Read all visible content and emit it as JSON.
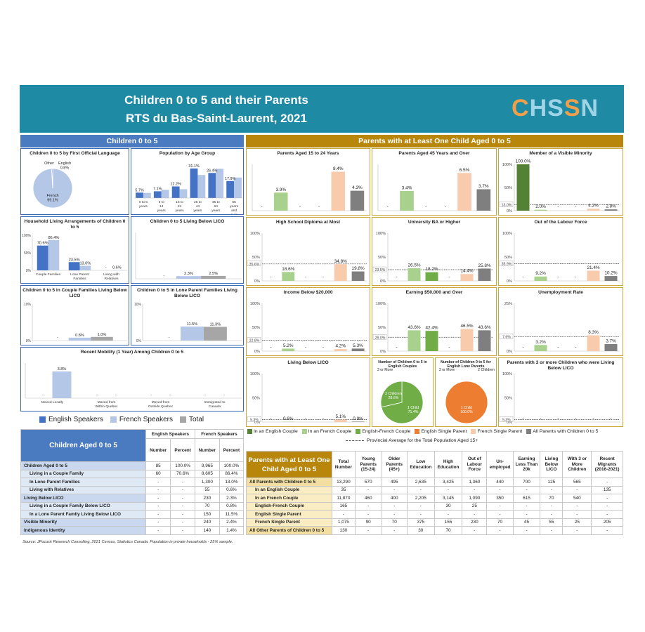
{
  "header": {
    "title": "Children 0 to 5 and their Parents",
    "subtitle": "RTS du Bas-Saint-Laurent, 2021",
    "logo": "CHSSN"
  },
  "colors": {
    "eng": "#4472c4",
    "fr": "#b4c7e7",
    "tot": "#a6a6a6",
    "header_teal": "#1f8aa4",
    "blue_head": "#4a7bc1",
    "gold_head": "#b8860b",
    "c_eng_couple": "#548235",
    "c_fr_couple": "#a9d18e",
    "c_ef_couple": "#70ad47",
    "c_eng_single": "#ed7d31",
    "c_fr_single": "#f8cbad",
    "c_all": "#7f7f7f"
  },
  "left": {
    "section_title": "Children 0 to 5",
    "legend": {
      "english": "English Speakers",
      "french": "French Speakers",
      "total": "Total"
    }
  },
  "right": {
    "section_title": "Parents with at Least One Child Aged 0 to 5",
    "legend": [
      "In an English Couple",
      "In an French Couple",
      "English-French Couple",
      "English Single Parent",
      "French Single Parent",
      "All Parents with Children 0 to 5"
    ],
    "avg_note": "Provincial Average for the Total Population Aged 15+"
  },
  "chart_data": [
    {
      "id": "fol",
      "type": "pie",
      "title": "Children 0 to 5 by First Official Language",
      "slices": [
        {
          "label": "French",
          "value": 99.1,
          "text": "99.1%"
        },
        {
          "label": "English",
          "value": 0.8,
          "text": "0.8%"
        },
        {
          "label": "Other",
          "value": 0.1,
          "text": "0.1%"
        }
      ]
    },
    {
      "id": "age",
      "type": "bar",
      "title": "Population by Age Group",
      "categories": [
        "0 to 5 years",
        "6 to 14 years",
        "15 to 24 years",
        "25 to 44 years",
        "45 to 64 years",
        "65 years and over"
      ],
      "series": [
        {
          "name": "English Speakers",
          "values": [
            5.7,
            7.1,
            12.2,
            31.1,
            26.4,
            17.9
          ]
        },
        {
          "name": "French Speakers",
          "values": [
            5.4,
            8.6,
            9.3,
            24.3,
            30.8,
            21.6
          ]
        }
      ]
    },
    {
      "id": "hla",
      "type": "bar",
      "title": "Household Living Arrangements of Children 0 to 5",
      "categories": [
        "Couple Families",
        "Lone Parent Families",
        "Living with Relatives"
      ],
      "yticks": [
        "100%",
        "50%",
        "0%"
      ],
      "series": [
        {
          "name": "English Speakers",
          "values": [
            70.6,
            23.5,
            null
          ],
          "labels": [
            "70.6%",
            "23.5%",
            "-"
          ]
        },
        {
          "name": "French Speakers",
          "values": [
            86.4,
            13.0,
            0.6
          ],
          "labels": [
            "86.4%",
            "13.0%",
            "0.6%"
          ]
        }
      ]
    },
    {
      "id": "lico",
      "type": "bar",
      "title": "Children 0 to 5 Living Below LICO",
      "series": [
        {
          "name": "English Speakers",
          "values": [
            null
          ],
          "labels": [
            "-"
          ]
        },
        {
          "name": "French Speakers",
          "values": [
            2.3
          ],
          "labels": [
            "2.3%"
          ]
        },
        {
          "name": "Total",
          "values": [
            2.5
          ],
          "labels": [
            "2.5%"
          ]
        }
      ]
    },
    {
      "id": "cflico",
      "type": "bar",
      "title": "Children 0 to 5 in Couple Families Living Below LICO",
      "yticks": [
        "10%",
        "0%"
      ],
      "series": [
        {
          "name": "English Speakers",
          "values": [
            null
          ],
          "labels": [
            "-"
          ]
        },
        {
          "name": "French Speakers",
          "values": [
            0.8
          ],
          "labels": [
            "0.8%"
          ]
        },
        {
          "name": "Total",
          "values": [
            1.0
          ],
          "labels": [
            "1.0%"
          ]
        }
      ]
    },
    {
      "id": "lplico",
      "type": "bar",
      "title": "Children 0 to 5 in Lone Parent Families Living Below LICO",
      "yticks": [
        "10%",
        "0%"
      ],
      "series": [
        {
          "name": "English Speakers",
          "values": [
            null
          ],
          "labels": [
            "-"
          ]
        },
        {
          "name": "French Speakers",
          "values": [
            11.5
          ],
          "labels": [
            "11.5%"
          ]
        },
        {
          "name": "Total",
          "values": [
            11.3
          ],
          "labels": [
            "11.3%"
          ]
        }
      ]
    },
    {
      "id": "mob",
      "type": "bar",
      "title": "Recent Mobility (1 Year) Among Children 0 to 5",
      "categories": [
        "Moved Locally",
        "Moved from Within Quebec",
        "Moved from Outside Quebec",
        "Immigrated to Canada"
      ],
      "series": [
        {
          "name": "English Speakers",
          "values": [
            null,
            null,
            null,
            null
          ],
          "labels": [
            "-",
            "-",
            "-",
            "-"
          ]
        },
        {
          "name": "French Speakers",
          "values": [
            3.8,
            null,
            null,
            null
          ],
          "labels": [
            "3.8%",
            "-",
            "-",
            "-"
          ]
        }
      ]
    },
    {
      "id": "p15",
      "type": "bar",
      "title": "Parents Aged 15 to 24 Years",
      "ymax": 10,
      "values": [
        null,
        3.9,
        null,
        null,
        8.4,
        4.3
      ],
      "labels": [
        "-",
        "3.9%",
        "-",
        "-",
        "8.4%",
        "4.3%"
      ]
    },
    {
      "id": "p45",
      "type": "bar",
      "title": "Parents Aged 45 Years and Over",
      "ymax": 8,
      "values": [
        null,
        3.4,
        null,
        null,
        6.5,
        3.7
      ],
      "labels": [
        "-",
        "3.4%",
        "-",
        "-",
        "6.5%",
        "3.7%"
      ]
    },
    {
      "id": "vis",
      "type": "bar",
      "title": "Member of a Visible Minority",
      "ymax": 100,
      "yticks": [
        "100%",
        "50%",
        "0%"
      ],
      "avg": 13.0,
      "avg_label": "13.0%",
      "values": [
        100.0,
        2.0,
        null,
        null,
        4.2,
        2.8
      ],
      "labels": [
        "100.0%",
        "2.0%",
        "-",
        "-",
        "4.2%",
        "2.8%"
      ]
    },
    {
      "id": "hsd",
      "type": "bar",
      "title": "High School Diploma at Most",
      "ymax": 100,
      "yticks": [
        "100%",
        "50%",
        "0%"
      ],
      "avg": 35.6,
      "avg_label": "35.6%",
      "values": [
        null,
        18.6,
        null,
        null,
        34.8,
        19.8
      ],
      "labels": [
        "-",
        "18.6%",
        "-",
        "-",
        "34.8%",
        "19.8%"
      ]
    },
    {
      "id": "uni",
      "type": "bar",
      "title": "University BA or Higher",
      "ymax": 100,
      "yticks": [
        "100%",
        "50%",
        "0%"
      ],
      "avg": 23.5,
      "avg_label": "23.5%",
      "values": [
        null,
        26.5,
        18.2,
        null,
        14.4,
        25.8
      ],
      "labels": [
        "-",
        "26.5%",
        "18.2%",
        "-",
        "14.4%",
        "25.8%"
      ]
    },
    {
      "id": "olf",
      "type": "bar",
      "title": "Out of the Labour Force",
      "ymax": 100,
      "yticks": [
        "100%",
        "50%",
        "0%"
      ],
      "avg": 35.9,
      "avg_label": "35.9%",
      "values": [
        null,
        9.2,
        null,
        null,
        21.4,
        10.2
      ],
      "labels": [
        "-",
        "9.2%",
        "-",
        "-",
        "21.4%",
        "10.2%"
      ]
    },
    {
      "id": "inc20",
      "type": "bar",
      "title": "Income Below $20,000",
      "ymax": 100,
      "yticks": [
        "100%",
        "50%",
        "0%"
      ],
      "avg": 22.8,
      "avg_label": "22.8%",
      "values": [
        null,
        5.2,
        null,
        null,
        4.2,
        5.3
      ],
      "labels": [
        "-",
        "5.2%",
        "-",
        "-",
        "4.2%",
        "5.3%"
      ]
    },
    {
      "id": "earn50",
      "type": "bar",
      "title": "Earning $50,000 and Over",
      "ymax": 100,
      "yticks": [
        "100%",
        "50%",
        "0%"
      ],
      "avg": 29.0,
      "avg_label": "29.0%",
      "values": [
        null,
        43.6,
        42.4,
        null,
        46.5,
        43.6
      ],
      "labels": [
        "-",
        "43.6%",
        "42.4%",
        "-",
        "46.5%",
        "43.6%"
      ]
    },
    {
      "id": "unemp",
      "type": "bar",
      "title": "Unemployment Rate",
      "ymax": 25,
      "yticks": [
        "25%",
        "",
        "0%"
      ],
      "avg": 7.6,
      "avg_label": "7.6%",
      "values": [
        null,
        3.2,
        null,
        null,
        8.3,
        3.7
      ],
      "labels": [
        "-",
        "3.2%",
        "-",
        "-",
        "8.3%",
        "3.7%"
      ]
    },
    {
      "id": "lbl",
      "type": "bar",
      "title": "Living Below LICO",
      "ymax": 100,
      "yticks": [
        "100%",
        "50%",
        "0%"
      ],
      "avg": 5.3,
      "avg_label": "5.3%",
      "values": [
        null,
        0.6,
        null,
        null,
        5.1,
        0.9
      ],
      "labels": [
        "-",
        "0.6%",
        "-",
        "-",
        "5.1%",
        "0.9%"
      ]
    },
    {
      "id": "pie_eng_couples",
      "type": "pie",
      "title": "Number of Children 0 to 5 in English Couples",
      "slices": [
        {
          "label": "1 Child",
          "value": 71.4,
          "text": "71.4%"
        },
        {
          "label": "2 Children",
          "value": 28.6,
          "text": "28.6%"
        },
        {
          "label": "3 or More",
          "value": 0,
          "text": ""
        }
      ]
    },
    {
      "id": "pie_eng_lone",
      "type": "pie",
      "title": "Number of Children 0 to 5 for English Lone Parents",
      "slices": [
        {
          "label": "1 Child",
          "value": 100.0,
          "text": "100.0%"
        },
        {
          "label": "2 Children",
          "value": 0,
          "text": ""
        },
        {
          "label": "3 or More",
          "value": 0,
          "text": ""
        }
      ]
    },
    {
      "id": "three",
      "type": "bar",
      "title": "Parents with 3 or more Children who were Living Below LICO",
      "ymax": 100,
      "yticks": [
        "100%",
        "50%",
        "0%"
      ],
      "avg": 5.3,
      "avg_label": "5.3%",
      "values": [
        null,
        null,
        null,
        null,
        null,
        null
      ],
      "labels": [
        "-",
        "-",
        "-",
        "-",
        "-",
        "-"
      ]
    }
  ],
  "table_children": {
    "title": "Children Aged 0 to 5",
    "group_headers": [
      "English Speakers",
      "French Speakers"
    ],
    "col_headers": [
      "Number",
      "Percent",
      "Number",
      "Percent"
    ],
    "rows": [
      {
        "label": "Children Aged 0 to 5",
        "indent": 0,
        "vals": [
          "85",
          "100.0%",
          "9,965",
          "100.0%"
        ]
      },
      {
        "label": "Living in a Couple Family",
        "indent": 1,
        "vals": [
          "60",
          "70.6%",
          "8,605",
          "86.4%"
        ]
      },
      {
        "label": "In Lone Parent Families",
        "indent": 1,
        "vals": [
          "-",
          "-",
          "1,300",
          "13.0%"
        ]
      },
      {
        "label": "Living with Relatives",
        "indent": 1,
        "vals": [
          "-",
          "-",
          "55",
          "0.6%"
        ]
      },
      {
        "label": "Living Below LICO",
        "indent": 0,
        "vals": [
          "-",
          "-",
          "230",
          "2.3%"
        ]
      },
      {
        "label": "Living in a Couple Family Below LICO",
        "indent": 1,
        "vals": [
          "-",
          "-",
          "70",
          "0.8%"
        ]
      },
      {
        "label": "In a Lone Parent Family Living Below LICO",
        "indent": 1,
        "vals": [
          "-",
          "-",
          "150",
          "11.5%"
        ]
      },
      {
        "label": "Visible Minority",
        "indent": 0,
        "vals": [
          "-",
          "-",
          "240",
          "2.4%"
        ]
      },
      {
        "label": "Indigenous Identity",
        "indent": 0,
        "vals": [
          "-",
          "-",
          "140",
          "1.4%"
        ]
      }
    ]
  },
  "table_parents": {
    "title": "Parents with at Least One Child Aged 0 to 5",
    "col_headers": [
      "Total Number",
      "Young Parents (15-24)",
      "Older Parents (45+)",
      "Low Education",
      "High Education",
      "Out of Labour Force",
      "Un-employed",
      "Earning Less Than 20k",
      "Living Below LICO",
      "With 3 or More Children",
      "Recent Migrants (2016-2021)"
    ],
    "rows": [
      {
        "label": "All Parents with Children 0 to 5",
        "vals": [
          "13,290",
          "570",
          "495",
          "2,635",
          "3,425",
          "1,360",
          "440",
          "700",
          "125",
          "565",
          "-"
        ]
      },
      {
        "label": "In an English Couple",
        "vals": [
          "35",
          "-",
          "-",
          "-",
          "-",
          "-",
          "-",
          "-",
          "-",
          "-",
          "135"
        ]
      },
      {
        "label": "In an French Couple",
        "vals": [
          "11,870",
          "460",
          "400",
          "2,205",
          "3,145",
          "1,090",
          "350",
          "615",
          "70",
          "540",
          "-"
        ]
      },
      {
        "label": "English-French Couple",
        "vals": [
          "165",
          "-",
          "-",
          "-",
          "30",
          "25",
          "-",
          "-",
          "-",
          "-",
          "-"
        ]
      },
      {
        "label": "English Single Parent",
        "vals": [
          "-",
          "-",
          "-",
          "-",
          "-",
          "-",
          "-",
          "-",
          "-",
          "-",
          "-"
        ]
      },
      {
        "label": "French Single Parent",
        "vals": [
          "1,075",
          "90",
          "70",
          "375",
          "155",
          "230",
          "70",
          "45",
          "55",
          "25",
          "205"
        ]
      },
      {
        "label": "All Other Parents of Children 0 to 5",
        "vals": [
          "130",
          "-",
          "-",
          "30",
          "70",
          "-",
          "-",
          "-",
          "-",
          "-",
          "-"
        ]
      }
    ]
  },
  "source": "Source: JPocock Research Consulting, 2021 Census, Statistics Canada. Population in private households - 25% sample."
}
